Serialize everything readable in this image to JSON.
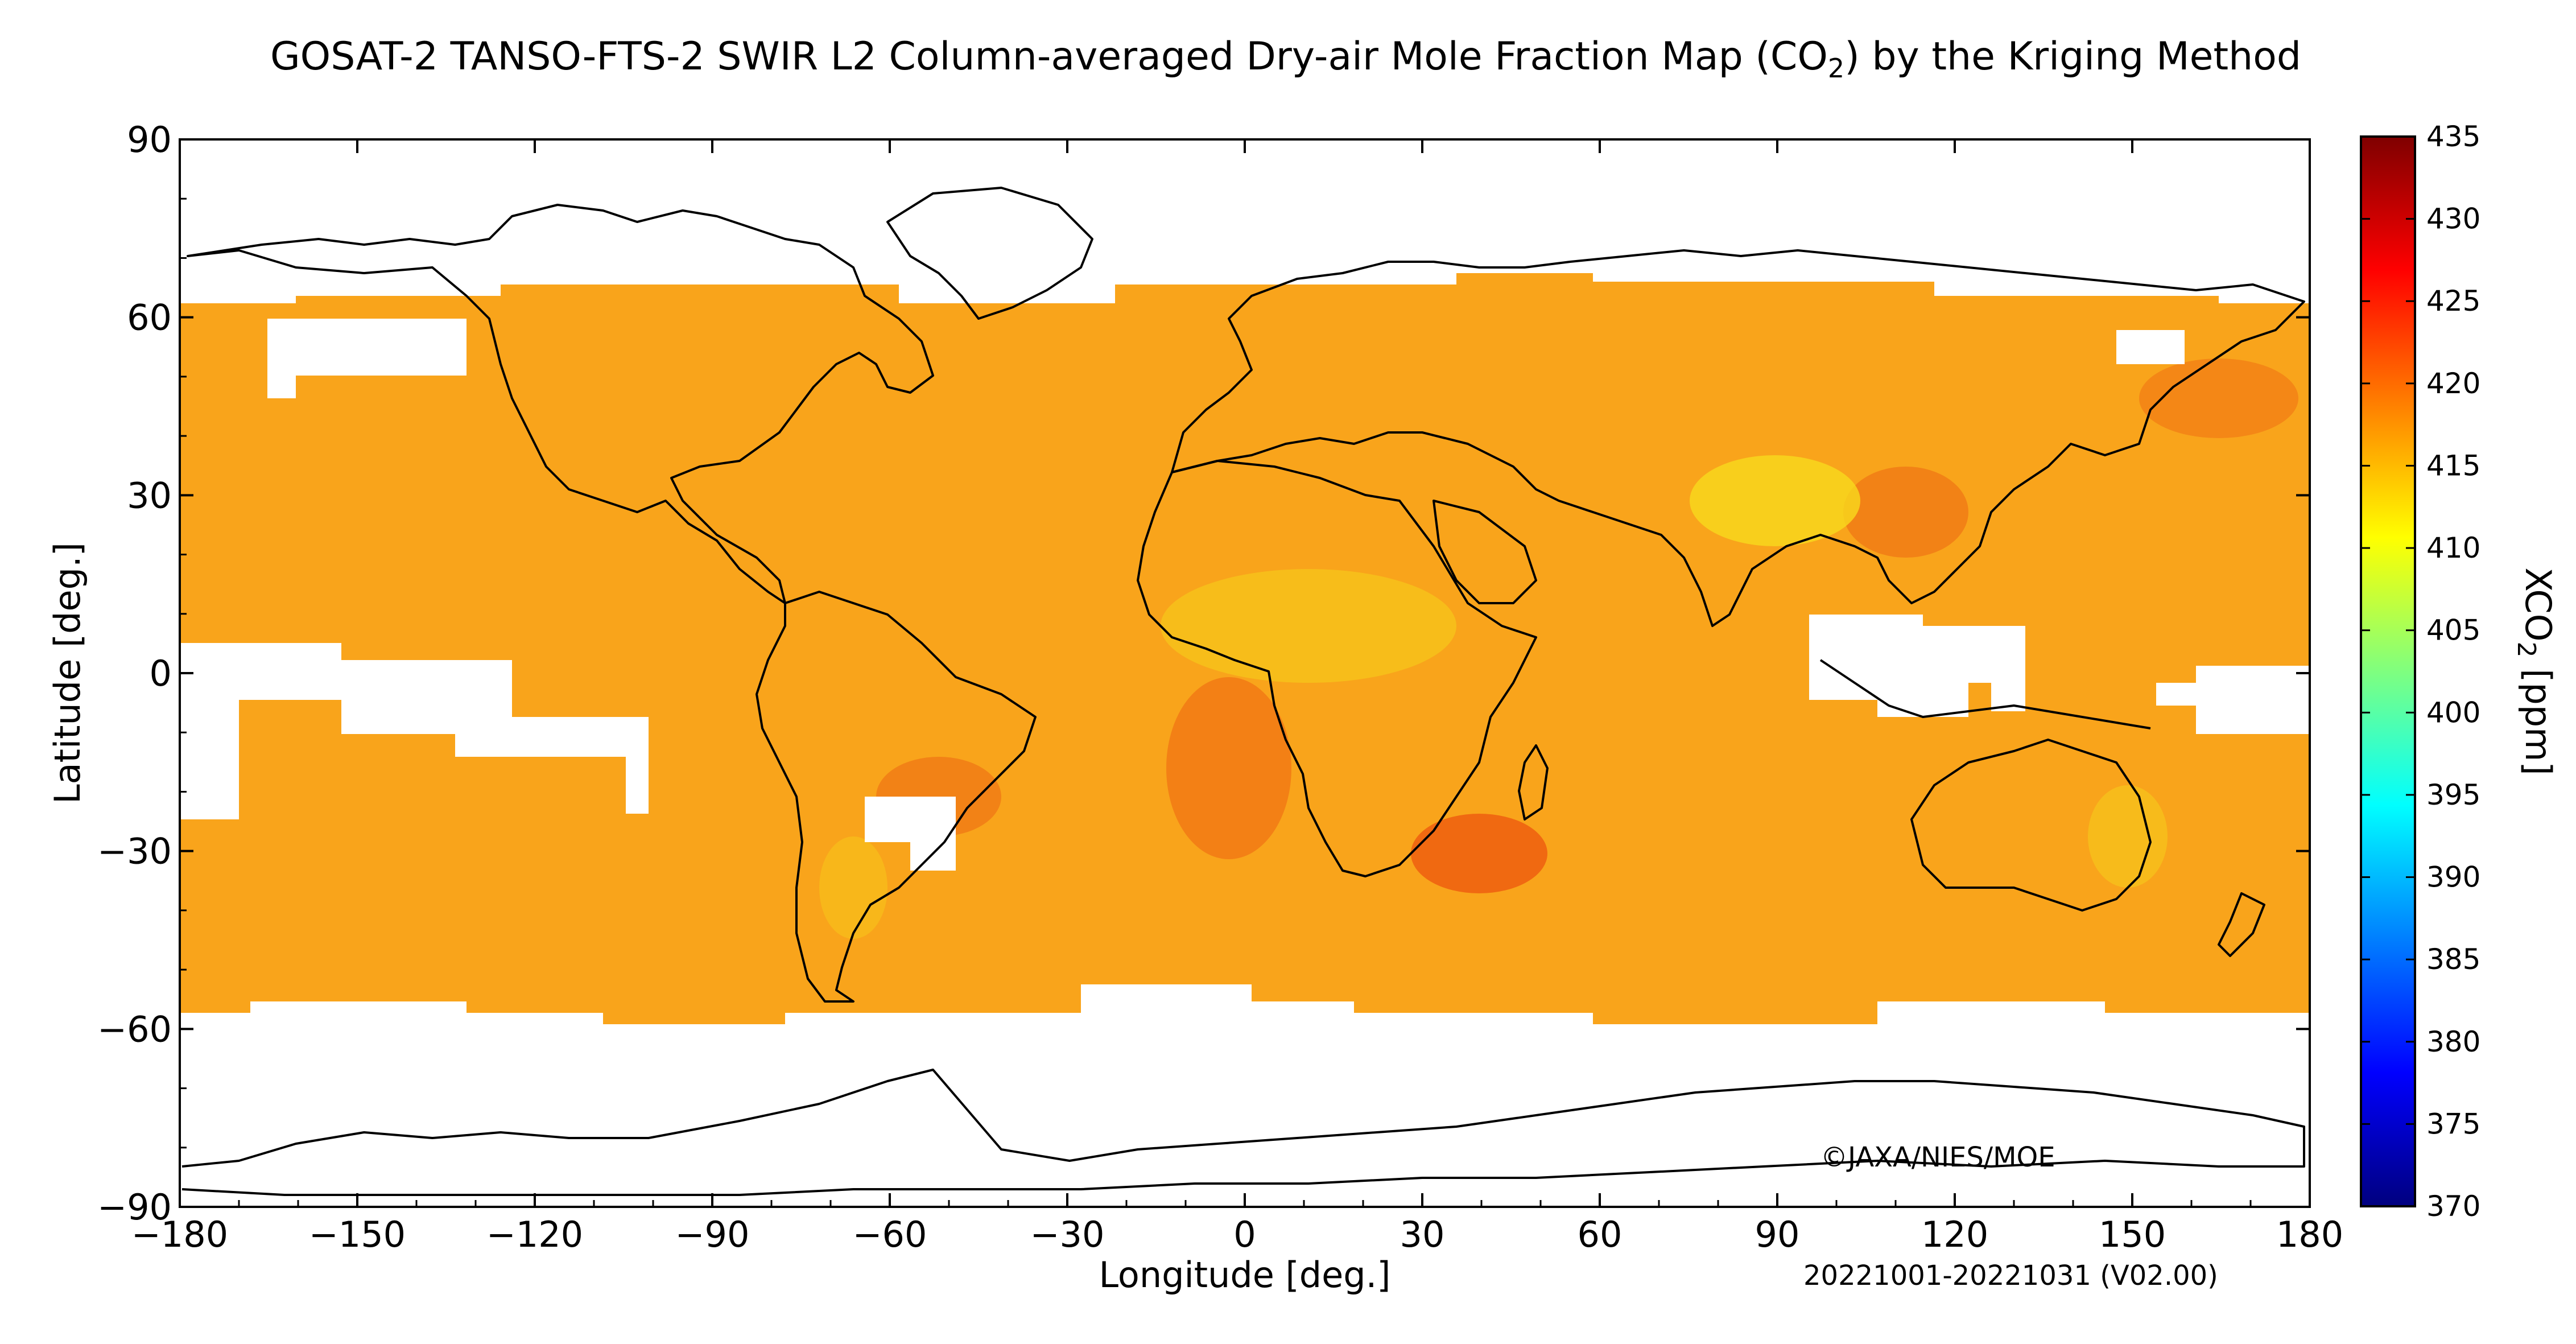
{
  "header": {
    "title_main": "GOSAT-2 TANSO-FTS-2 SWIR L2 Column-averaged Dry-air Mole Fraction Map (CO",
    "title_sub": "2",
    "title_tail": ") by the Kriging Method"
  },
  "map": {
    "xlabel": "Longitude [deg.]",
    "ylabel": "Latitude [deg.]",
    "lon_range": [
      -180,
      180
    ],
    "lat_range": [
      -90,
      90
    ],
    "lon_ticks": [
      "−180",
      "−150",
      "−120",
      "−90",
      "−60",
      "−30",
      "0",
      "30",
      "60",
      "90",
      "120",
      "150",
      "180"
    ],
    "lat_ticks": [
      "90",
      "60",
      "30",
      "0",
      "−30",
      "−60",
      "−90"
    ],
    "copyright": "©JAXA/NIES/MOE",
    "period": "20221001-20221031 (V02.00)"
  },
  "colorbar": {
    "label_main": "XCO",
    "label_sub": "2",
    "label_tail": " [ppm]",
    "range": [
      370,
      435
    ],
    "ticks": [
      "435",
      "430",
      "425",
      "420",
      "415",
      "410",
      "405",
      "400",
      "395",
      "390",
      "385",
      "380",
      "375",
      "370"
    ],
    "colors": [
      "#00007f",
      "#0000ff",
      "#007fff",
      "#00ffff",
      "#7fff7f",
      "#ffff00",
      "#ff7f00",
      "#ff0000",
      "#7f0000"
    ]
  },
  "colors": {
    "field_base": "#f9a41b",
    "field_high": "#f26f12",
    "field_low": "#f7d21a"
  }
}
